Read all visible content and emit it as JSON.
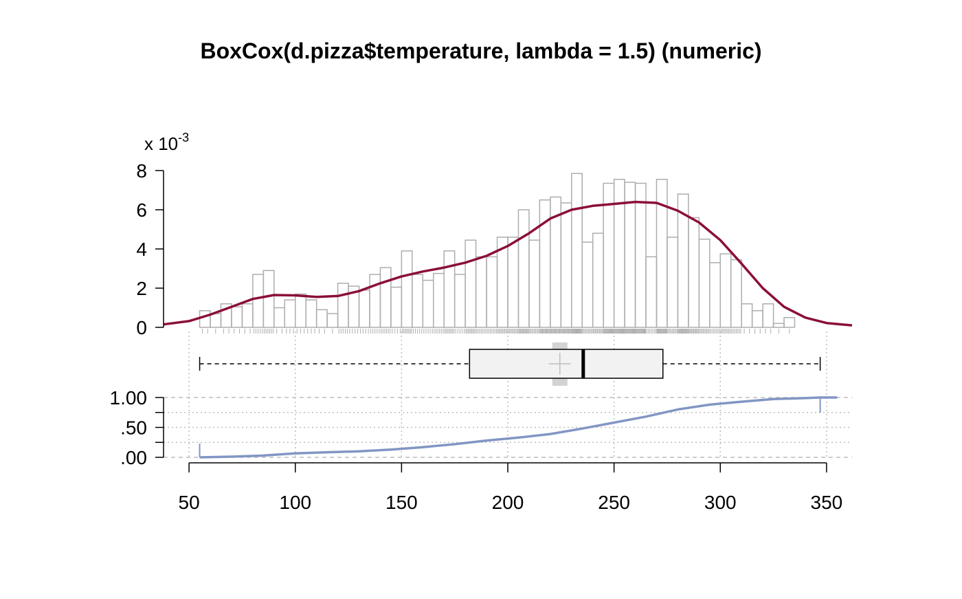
{
  "chart_data": {
    "type": "histogram",
    "title": "BoxCox(d.pizza$temperature, lambda = 1.5) (numeric)",
    "scale_label_prefix": "x 10",
    "scale_label_exponent": "-3",
    "x_ticks": [
      50,
      100,
      150,
      200,
      250,
      300,
      350
    ],
    "x_tick_labels": [
      "50",
      "100",
      "150",
      "200",
      "250",
      "300",
      "350"
    ],
    "xlim": [
      38,
      362
    ],
    "hist": {
      "ylim": [
        0,
        8
      ],
      "y_ticks": [
        0,
        2,
        4,
        6,
        8
      ],
      "y_tick_labels": [
        "0",
        "2",
        "4",
        "6",
        "8"
      ],
      "bin_start": 55,
      "bin_width": 5,
      "densities": [
        0.85,
        0.7,
        1.2,
        1.05,
        1.2,
        2.7,
        2.9,
        1.0,
        1.4,
        1.7,
        1.4,
        0.9,
        0.7,
        2.25,
        2.1,
        1.9,
        2.7,
        3.05,
        2.05,
        3.9,
        2.7,
        2.4,
        2.75,
        3.9,
        2.7,
        4.45,
        3.6,
        3.6,
        4.6,
        4.6,
        6.0,
        4.45,
        6.5,
        6.65,
        6.35,
        7.85,
        4.35,
        4.8,
        7.35,
        7.55,
        7.4,
        7.35,
        3.6,
        7.55,
        4.6,
        6.8,
        5.6,
        4.5,
        3.3,
        3.75,
        3.45,
        1.2,
        0.85,
        1.2,
        0.2,
        0.5
      ],
      "density_curve": [
        [
          38,
          0.15
        ],
        [
          50,
          0.32
        ],
        [
          60,
          0.65
        ],
        [
          70,
          1.05
        ],
        [
          80,
          1.45
        ],
        [
          90,
          1.65
        ],
        [
          100,
          1.63
        ],
        [
          110,
          1.55
        ],
        [
          120,
          1.6
        ],
        [
          130,
          1.85
        ],
        [
          140,
          2.25
        ],
        [
          150,
          2.6
        ],
        [
          160,
          2.85
        ],
        [
          170,
          3.05
        ],
        [
          180,
          3.3
        ],
        [
          190,
          3.65
        ],
        [
          200,
          4.15
        ],
        [
          210,
          4.8
        ],
        [
          220,
          5.55
        ],
        [
          230,
          6.0
        ],
        [
          240,
          6.2
        ],
        [
          250,
          6.3
        ],
        [
          260,
          6.4
        ],
        [
          270,
          6.35
        ],
        [
          280,
          5.95
        ],
        [
          290,
          5.35
        ],
        [
          300,
          4.45
        ],
        [
          310,
          3.25
        ],
        [
          320,
          2.0
        ],
        [
          330,
          1.05
        ],
        [
          340,
          0.5
        ],
        [
          350,
          0.22
        ],
        [
          362,
          0.1
        ]
      ]
    },
    "boxplot": {
      "whisker_low": 55,
      "q1": 182,
      "median": 235.5,
      "q3": 273,
      "whisker_high": 347,
      "mean": 224.5
    },
    "ecdf": {
      "ylim": [
        0,
        1
      ],
      "y_ticks": [
        0,
        0.5,
        1
      ],
      "y_tick_labels": [
        ".00",
        ".50",
        "1.00"
      ],
      "points": [
        [
          55,
          0.0
        ],
        [
          70,
          0.012
        ],
        [
          85,
          0.03
        ],
        [
          100,
          0.065
        ],
        [
          115,
          0.085
        ],
        [
          130,
          0.1
        ],
        [
          145,
          0.13
        ],
        [
          160,
          0.17
        ],
        [
          175,
          0.22
        ],
        [
          190,
          0.28
        ],
        [
          205,
          0.33
        ],
        [
          220,
          0.39
        ],
        [
          235,
          0.48
        ],
        [
          250,
          0.58
        ],
        [
          265,
          0.68
        ],
        [
          280,
          0.8
        ],
        [
          295,
          0.88
        ],
        [
          310,
          0.93
        ],
        [
          325,
          0.975
        ],
        [
          340,
          0.99
        ],
        [
          347,
          1.0
        ],
        [
          355,
          1.0
        ]
      ]
    },
    "colors": {
      "density": "#8B0E3A",
      "hist_border": "#ADADAD",
      "ecdf": "#8296C4",
      "box_fill": "#F2F2F2",
      "grid": "#BEBEBE",
      "mean_marker": "#BEBEBE",
      "mean_band": "#D3D3D3"
    },
    "grid": true
  }
}
